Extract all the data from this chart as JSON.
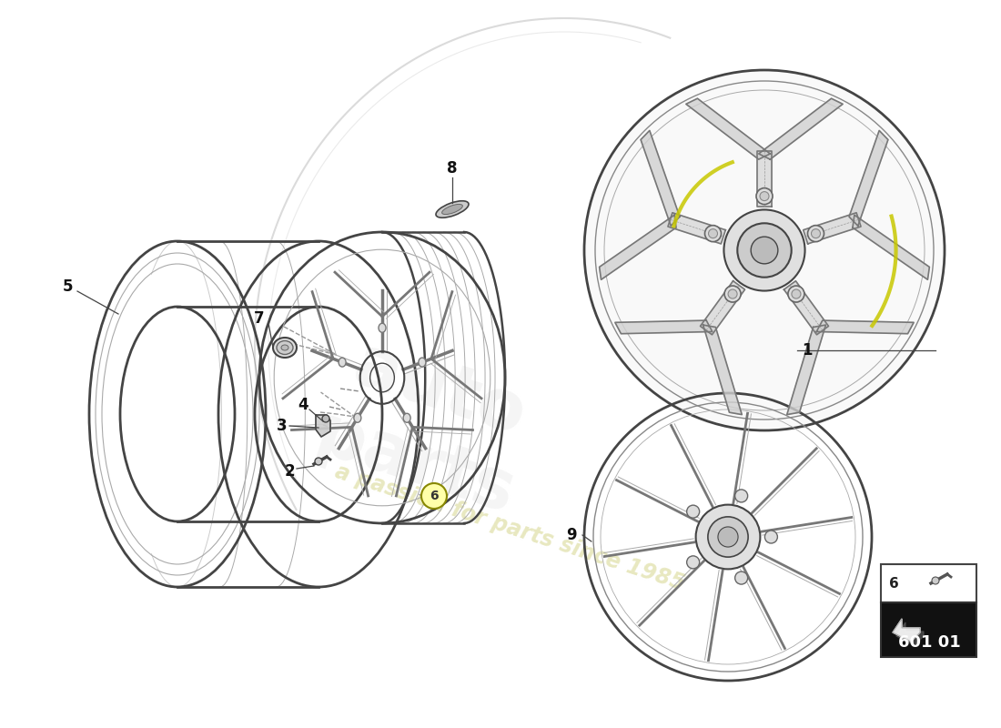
{
  "background_color": "#ffffff",
  "part_number": "601 01",
  "watermark_text": "a passion for parts since 1985",
  "watermark_color": "#e8e8c0",
  "line_color": "#444444",
  "light_line": "#aaaaaa",
  "spoke_color": "#777777"
}
